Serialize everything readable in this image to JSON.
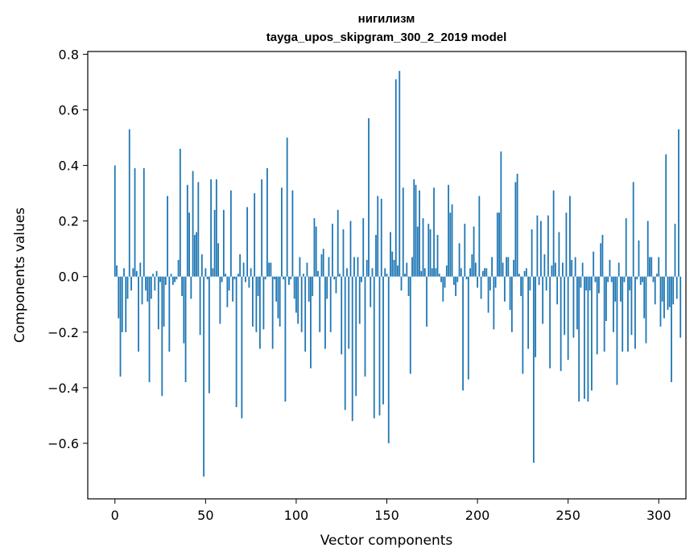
{
  "chart_data": {
    "type": "bar",
    "title": "нигилизм",
    "subtitle": "tayga_upos_skipgram_300_2_2019 model",
    "xlabel": "Vector components",
    "ylabel": "Components values",
    "xlim": [
      -15,
      315
    ],
    "ylim": [
      -0.8,
      0.81
    ],
    "xticks": [
      0,
      50,
      100,
      150,
      200,
      250,
      300
    ],
    "xtick_labels": [
      "0",
      "50",
      "100",
      "150",
      "200",
      "250",
      "300"
    ],
    "yticks": [
      -0.6,
      -0.4,
      -0.2,
      0.0,
      0.2,
      0.4,
      0.6,
      0.8
    ],
    "ytick_labels": [
      "−0.6",
      "−0.4",
      "−0.2",
      "0.0",
      "0.2",
      "0.4",
      "0.6",
      "0.8"
    ],
    "grid": false,
    "bar_color": "#1f77b4",
    "values": [
      0.4,
      0.04,
      -0.15,
      -0.36,
      -0.2,
      0.03,
      -0.2,
      -0.08,
      0.53,
      -0.05,
      0.03,
      0.39,
      0.02,
      -0.27,
      0.05,
      -0.1,
      0.39,
      -0.05,
      -0.09,
      -0.38,
      -0.08,
      0.01,
      -0.05,
      0.02,
      -0.19,
      -0.02,
      -0.43,
      -0.18,
      -0.03,
      0.29,
      -0.27,
      0.01,
      -0.03,
      -0.02,
      -0.01,
      0.06,
      0.46,
      -0.07,
      -0.24,
      -0.38,
      0.33,
      0.23,
      -0.08,
      0.38,
      0.15,
      0.16,
      0.34,
      -0.21,
      0.08,
      -0.72,
      0.03,
      -0.01,
      -0.42,
      0.35,
      0.03,
      0.24,
      0.35,
      0.12,
      -0.17,
      -0.02,
      0.24,
      0.01,
      -0.11,
      -0.05,
      0.31,
      -0.09,
      -0.01,
      -0.47,
      0.01,
      0.08,
      -0.51,
      0.05,
      -0.02,
      0.25,
      -0.04,
      0.03,
      -0.18,
      0.3,
      -0.2,
      -0.07,
      -0.26,
      0.35,
      -0.19,
      -0.01,
      0.39,
      0.05,
      0.05,
      -0.26,
      -0.01,
      -0.09,
      -0.15,
      -0.18,
      0.32,
      -0.01,
      -0.45,
      0.5,
      -0.03,
      -0.01,
      0.31,
      -0.08,
      -0.13,
      -0.17,
      0.07,
      -0.2,
      0.01,
      -0.27,
      0.05,
      -0.09,
      -0.33,
      -0.07,
      0.21,
      0.18,
      0.02,
      -0.2,
      0.08,
      0.1,
      -0.26,
      -0.08,
      0.07,
      -0.2,
      0.19,
      -0.01,
      -0.06,
      0.24,
      0.01,
      -0.28,
      0.17,
      -0.48,
      0.03,
      -0.26,
      0.2,
      -0.52,
      0.07,
      -0.43,
      0.07,
      -0.17,
      -0.02,
      0.21,
      -0.36,
      0.06,
      0.57,
      -0.11,
      0.03,
      -0.51,
      0.15,
      0.29,
      -0.5,
      0.28,
      -0.46,
      0.03,
      0.01,
      -0.6,
      0.16,
      0.09,
      0.06,
      0.71,
      0.04,
      0.74,
      -0.05,
      0.32,
      0.01,
      0.05,
      -0.07,
      -0.35,
      0.07,
      0.35,
      0.33,
      0.18,
      0.31,
      0.02,
      0.21,
      0.03,
      -0.18,
      0.19,
      0.17,
      0.03,
      0.32,
      0.03,
      0.15,
      0.01,
      -0.02,
      -0.09,
      -0.04,
      0.04,
      0.33,
      0.23,
      0.26,
      -0.03,
      -0.07,
      -0.02,
      0.12,
      0.03,
      -0.41,
      0.19,
      -0.01,
      -0.37,
      0.03,
      0.08,
      0.18,
      0.05,
      -0.04,
      0.29,
      -0.08,
      0.02,
      0.03,
      0.03,
      -0.13,
      -0.05,
      0.07,
      -0.19,
      -0.04,
      0.23,
      0.23,
      0.45,
      0.05,
      -0.09,
      0.07,
      0.07,
      -0.12,
      -0.2,
      0.06,
      0.34,
      0.37,
      0.01,
      -0.07,
      -0.35,
      0.02,
      0.03,
      -0.26,
      -0.05,
      0.17,
      -0.67,
      -0.29,
      0.22,
      -0.03,
      0.2,
      -0.17,
      0.08,
      -0.05,
      0.22,
      -0.33,
      0.04,
      0.31,
      0.05,
      -0.1,
      0.16,
      -0.34,
      0.05,
      -0.21,
      0.23,
      -0.3,
      0.29,
      0.06,
      -0.22,
      0.07,
      -0.19,
      -0.45,
      -0.04,
      0.05,
      -0.44,
      -0.05,
      -0.45,
      -0.05,
      -0.41,
      0.09,
      -0.02,
      -0.28,
      -0.06,
      0.12,
      0.15,
      -0.27,
      -0.16,
      -0.02,
      0.06,
      -0.02,
      -0.2,
      -0.09,
      -0.39,
      0.05,
      -0.09,
      -0.27,
      -0.02,
      0.21,
      -0.27,
      -0.05,
      -0.21,
      0.34,
      -0.26,
      -0.01,
      0.13,
      -0.03,
      -0.02,
      -0.15,
      -0.24,
      0.2,
      0.07,
      0.07,
      -0.02,
      -0.1,
      0.01,
      0.07,
      -0.18,
      -0.09,
      -0.15,
      0.44,
      -0.12,
      -0.11,
      -0.38,
      -0.1,
      0.19,
      -0.08,
      0.53,
      -0.22
    ]
  }
}
